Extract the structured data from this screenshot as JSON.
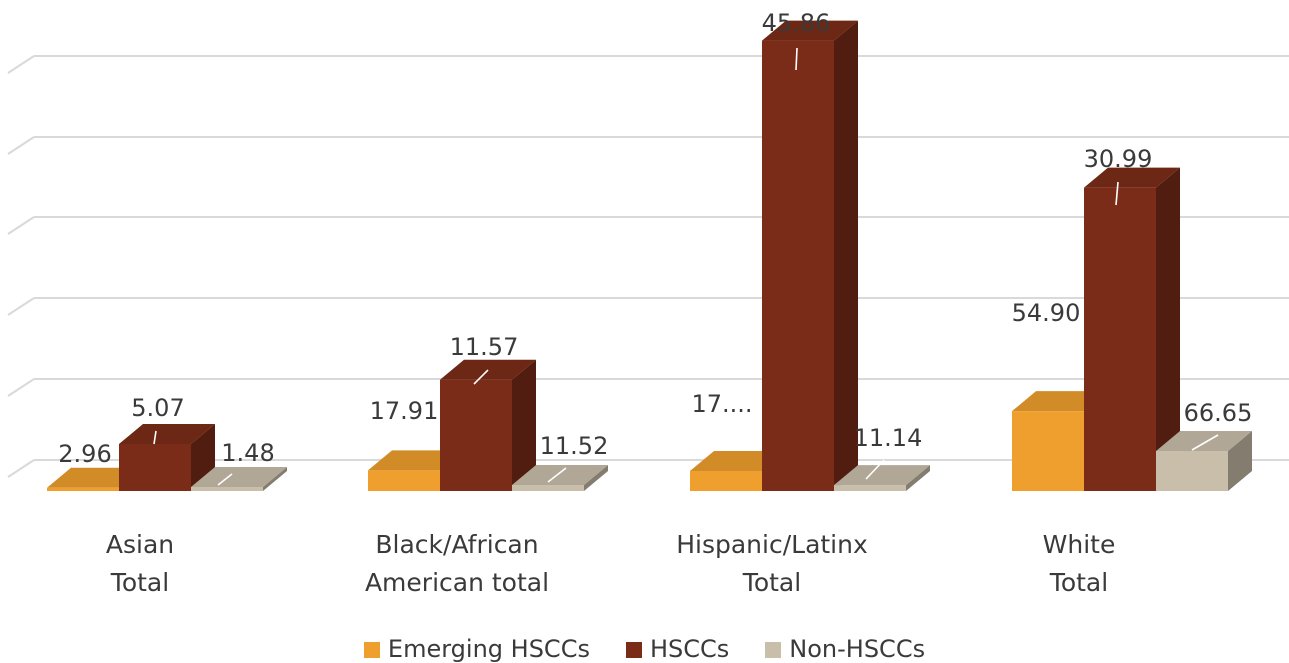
{
  "chart_data": {
    "type": "bar",
    "style": "3d-clustered-column",
    "categories": [
      "Asian\nTotal",
      "Black/African\nAmerican total",
      "Hispanic/Latinx\nTotal",
      "White\nTotal"
    ],
    "series": [
      {
        "name": "Emerging HSCCs",
        "values": [
          2.96,
          17.91,
          17.5,
          54.9
        ],
        "labels": [
          "2.96",
          "17.91",
          "17....",
          "54.90"
        ],
        "color": "#EE9F2E"
      },
      {
        "name": "HSCCs",
        "values": [
          5.07,
          11.57,
          45.86,
          30.99
        ],
        "labels": [
          "5.07",
          "11.57",
          "45.86",
          "30.99"
        ],
        "color": "#7B2C18"
      },
      {
        "name": "Non-HSCCs",
        "values": [
          1.48,
          11.52,
          11.14,
          66.65
        ],
        "labels": [
          "1.48",
          "11.52",
          "11.14",
          "66.65"
        ],
        "color": "#C9BEAA"
      }
    ],
    "axis_values_shown": false,
    "gridlines": true,
    "legend": "bottom"
  }
}
